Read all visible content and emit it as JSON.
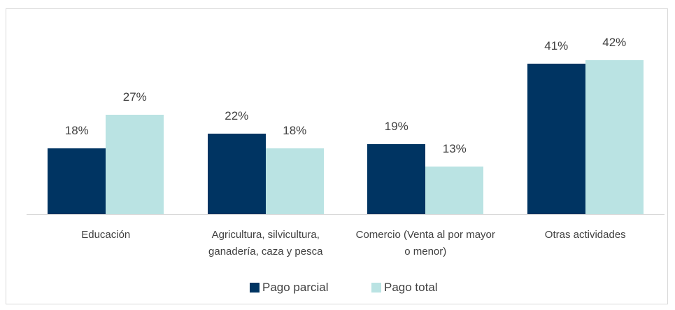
{
  "chart_data": {
    "type": "bar",
    "categories": [
      "Educación",
      "Agricultura, silvicultura, ganadería, caza y pesca",
      "Comercio (Venta al por mayor o menor)",
      "Otras actividades"
    ],
    "series": [
      {
        "name": "Pago parcial",
        "color": "#003462",
        "values": [
          18,
          22,
          19,
          41
        ],
        "value_labels": [
          "18%",
          "22%",
          "19%",
          "41%"
        ]
      },
      {
        "name": "Pago total",
        "color": "#bae3e3",
        "values": [
          27,
          18,
          13,
          42
        ],
        "value_labels": [
          "27%",
          "18%",
          "13%",
          "42%"
        ]
      }
    ],
    "ylim": [
      0,
      45
    ],
    "legend": "bottom"
  }
}
